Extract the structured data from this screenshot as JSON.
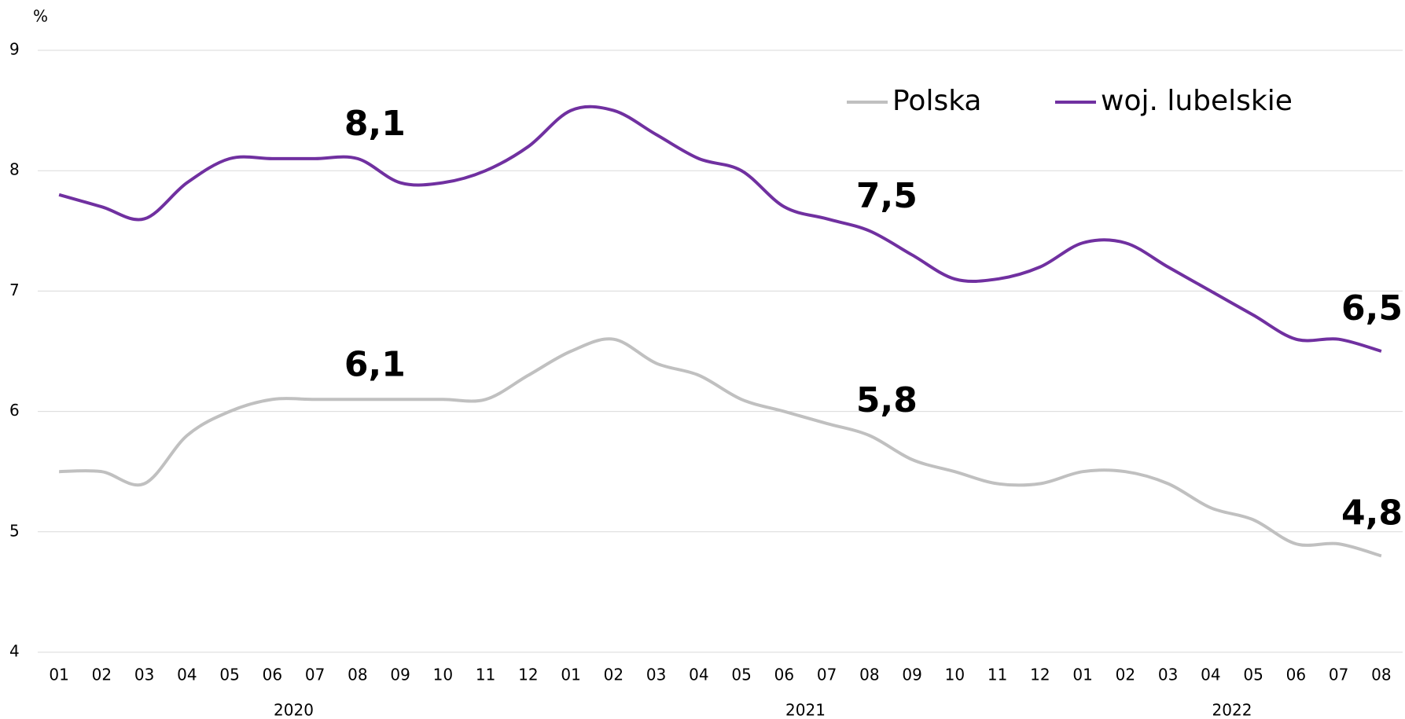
{
  "chart_data": {
    "type": "line",
    "y_label": "%",
    "categories": [
      "01",
      "02",
      "03",
      "04",
      "05",
      "06",
      "07",
      "08",
      "09",
      "10",
      "11",
      "12",
      "01",
      "02",
      "03",
      "04",
      "05",
      "06",
      "07",
      "08",
      "09",
      "10",
      "11",
      "12",
      "01",
      "02",
      "03",
      "04",
      "05",
      "06",
      "07",
      "08"
    ],
    "x_groups": [
      "2020",
      "2021",
      "2022"
    ],
    "series": [
      {
        "name": "Polska",
        "color": "#c0c0c0",
        "values": [
          5.5,
          5.5,
          5.4,
          5.8,
          6.0,
          6.1,
          6.1,
          6.1,
          6.1,
          6.1,
          6.1,
          6.3,
          6.5,
          6.6,
          6.4,
          6.3,
          6.1,
          6.0,
          5.9,
          5.8,
          5.6,
          5.5,
          5.4,
          5.4,
          5.5,
          5.5,
          5.4,
          5.2,
          5.1,
          4.9,
          4.9,
          4.8
        ],
        "value_labels": [
          null,
          null,
          null,
          null,
          null,
          null,
          null,
          "6,1",
          null,
          null,
          null,
          null,
          null,
          null,
          null,
          null,
          null,
          null,
          null,
          "5,8",
          null,
          null,
          null,
          null,
          null,
          null,
          null,
          null,
          null,
          null,
          null,
          "4,8"
        ]
      },
      {
        "name": "woj. lubelskie",
        "color": "#7030a0",
        "values": [
          7.8,
          7.7,
          7.6,
          7.9,
          8.1,
          8.1,
          8.1,
          8.1,
          7.9,
          7.9,
          8.0,
          8.2,
          8.5,
          8.5,
          8.3,
          8.1,
          8.0,
          7.7,
          7.6,
          7.5,
          7.3,
          7.1,
          7.1,
          7.2,
          7.4,
          7.4,
          7.2,
          7.0,
          6.8,
          6.6,
          6.6,
          6.5
        ],
        "value_labels": [
          null,
          null,
          null,
          null,
          null,
          null,
          null,
          "8,1",
          null,
          null,
          null,
          null,
          null,
          null,
          null,
          null,
          null,
          null,
          null,
          "7,5",
          null,
          null,
          null,
          null,
          null,
          null,
          null,
          null,
          null,
          null,
          null,
          "6,5"
        ]
      }
    ],
    "ylim": [
      4,
      9
    ],
    "yticks": [
      4,
      5,
      6,
      7,
      8,
      9
    ],
    "grid": true,
    "legend": "top-right"
  }
}
